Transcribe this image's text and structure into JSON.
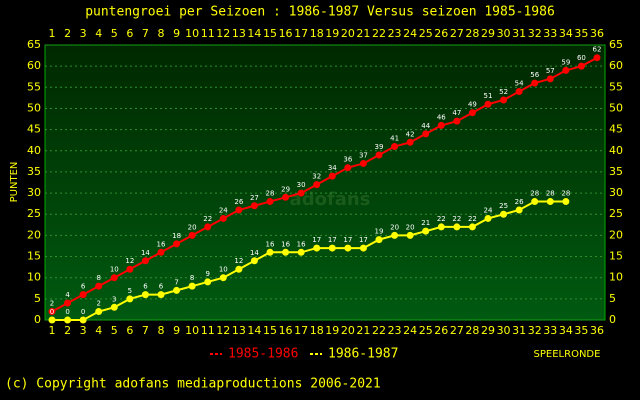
{
  "chart_data": {
    "type": "line",
    "title": "puntengroei per Seizoen : 1986-1987 Versus seizoen 1985-1986",
    "ylabel": "PUNTEN",
    "xlabel": "SPEELRONDE",
    "watermark": "adofans",
    "footer": "(c) Copyright adofans mediaproductions 2006-2021",
    "categories": [
      1,
      2,
      3,
      4,
      5,
      6,
      7,
      8,
      9,
      10,
      11,
      12,
      13,
      14,
      15,
      16,
      17,
      18,
      19,
      20,
      21,
      22,
      23,
      24,
      25,
      26,
      27,
      28,
      29,
      30,
      31,
      32,
      33,
      34,
      35,
      36
    ],
    "ylim": [
      0,
      65
    ],
    "yticks": [
      0,
      5,
      10,
      15,
      20,
      25,
      30,
      35,
      40,
      45,
      50,
      55,
      60,
      65
    ],
    "grid": true,
    "series": [
      {
        "name": "1985-1986",
        "color": "#ff0000",
        "values": [
          2,
          4,
          6,
          8,
          10,
          12,
          14,
          16,
          18,
          20,
          22,
          24,
          26,
          27,
          28,
          29,
          30,
          32,
          34,
          36,
          37,
          39,
          41,
          42,
          44,
          46,
          47,
          49,
          51,
          52,
          54,
          56,
          57,
          59,
          60,
          62
        ]
      },
      {
        "name": "1986-1987",
        "color": "#ffff00",
        "values": [
          0,
          0,
          0,
          2,
          3,
          5,
          6,
          6,
          7,
          8,
          9,
          10,
          12,
          14,
          16,
          16,
          16,
          17,
          17,
          17,
          17,
          19,
          20,
          20,
          21,
          22,
          22,
          22,
          24,
          25,
          26,
          28,
          28,
          28,
          null,
          null
        ]
      }
    ]
  }
}
